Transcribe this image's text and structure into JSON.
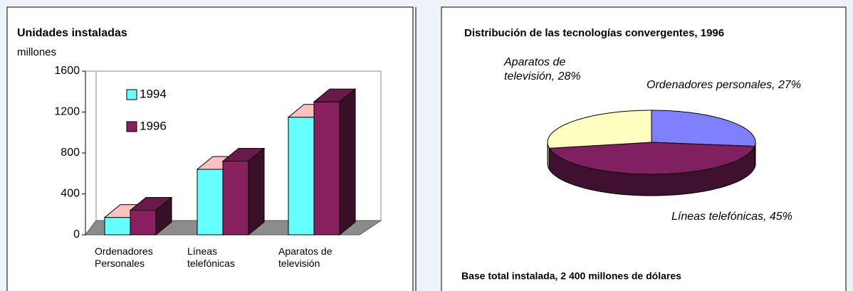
{
  "chart_data": [
    {
      "type": "bar3d",
      "title": "Unidades instaladas",
      "y_label": "millones",
      "categories": [
        "Ordenadores Personales",
        "Líneas telefónicas",
        "Aparatos de televisión"
      ],
      "series": [
        {
          "name": "1994",
          "color": "#66ffff",
          "top_color": "#ffc0c0",
          "values": [
            170,
            640,
            1150
          ]
        },
        {
          "name": "1996",
          "color": "#882060",
          "top_color": "#6a1a48",
          "values": [
            240,
            720,
            1300
          ]
        }
      ],
      "ylim": [
        0,
        1600
      ],
      "yticks": [
        0,
        400,
        800,
        1200,
        1600
      ]
    },
    {
      "type": "pie3d",
      "title": "Distribución de las tecnologías convergentes, 1996",
      "values": [
        27,
        45,
        28
      ],
      "value_labels": [
        "Ordenadores personales, 27%",
        "Líneas telefónicas, 45%",
        "Aparatos de televisión, 28%"
      ],
      "colors": [
        "#8080ff",
        "#802060",
        "#ffffc0"
      ],
      "side_colors": [
        "#404080",
        "#401030",
        "#8a8a60"
      ],
      "annotation": "Base total instalada, 2 400 millones de dólares"
    }
  ]
}
